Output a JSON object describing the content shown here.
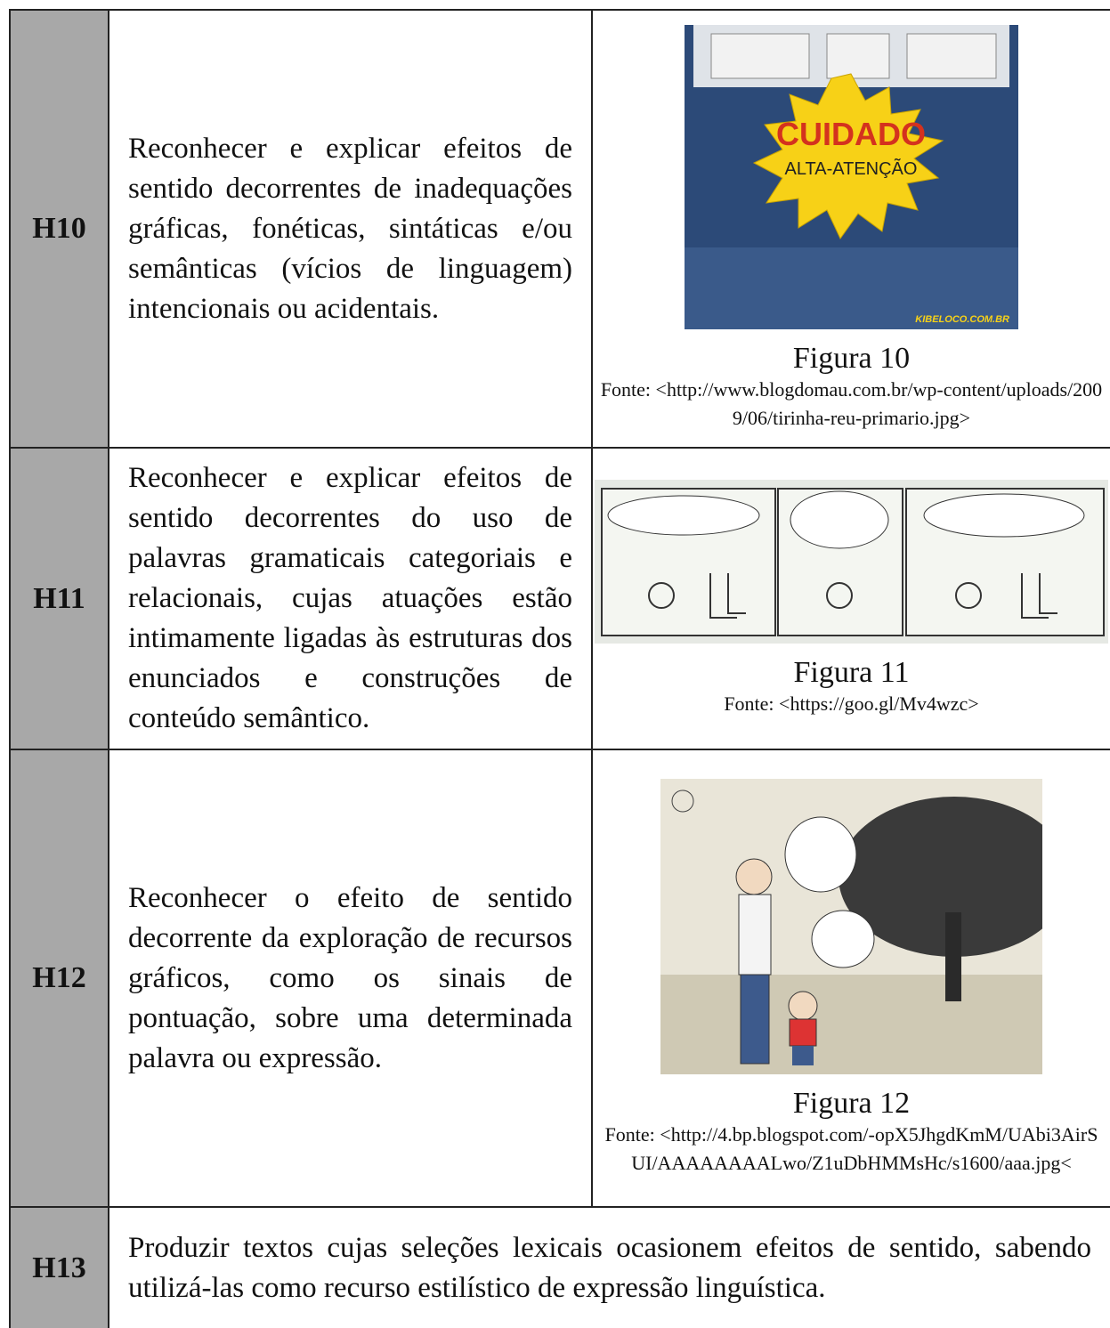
{
  "rows": [
    {
      "code": "H10",
      "description": "Reconhecer e explicar efeitos de sentido decorrentes de inadequações gráficas, fonéticas, sintáticas e/ou semânticas (vícios de linguagem) intencionais ou acidentais.",
      "figure": {
        "sign_text": [
          "CUIDADO",
          "ALTA-ATENÇÃO"
        ],
        "watermark": "KIBELOCO.COM.BR",
        "caption": "Figura 10",
        "source": "Fonte: <http://www.blogdomau.com.br/wp-content/uploads/2009/06/tirinha-reu-primario.jpg>"
      }
    },
    {
      "code": "H11",
      "description": "Reconhecer e explicar efeitos de sentido decorrentes do uso de palavras gramaticais categoriais e relacionais, cujas atuações estão intimamente ligadas às estruturas dos enunciados e construções de conteúdo semântico.",
      "figure": {
        "caption": "Figura 11",
        "source": "Fonte: <https://goo.gl/Mv4wzc>"
      }
    },
    {
      "code": "H12",
      "description": "Reconhecer o efeito de sentido decorrente da exploração de recursos gráficos, como os sinais de pontuação, sobre uma determinada palavra ou expressão.",
      "figure": {
        "caption": "Figura 12",
        "source": "Fonte: <http://4.bp.blogspot.com/-opX5JhgdKmM/UAbi3AirSUI/AAAAAAAALwo/Z1uDbHMMsHc/s1600/aaa.jpg<"
      }
    },
    {
      "code": "H13",
      "description": "Produzir textos cujas seleções lexicais ocasionem efeitos de sentido, sabendo utilizá-las como recurso estilístico de expressão linguística."
    }
  ]
}
